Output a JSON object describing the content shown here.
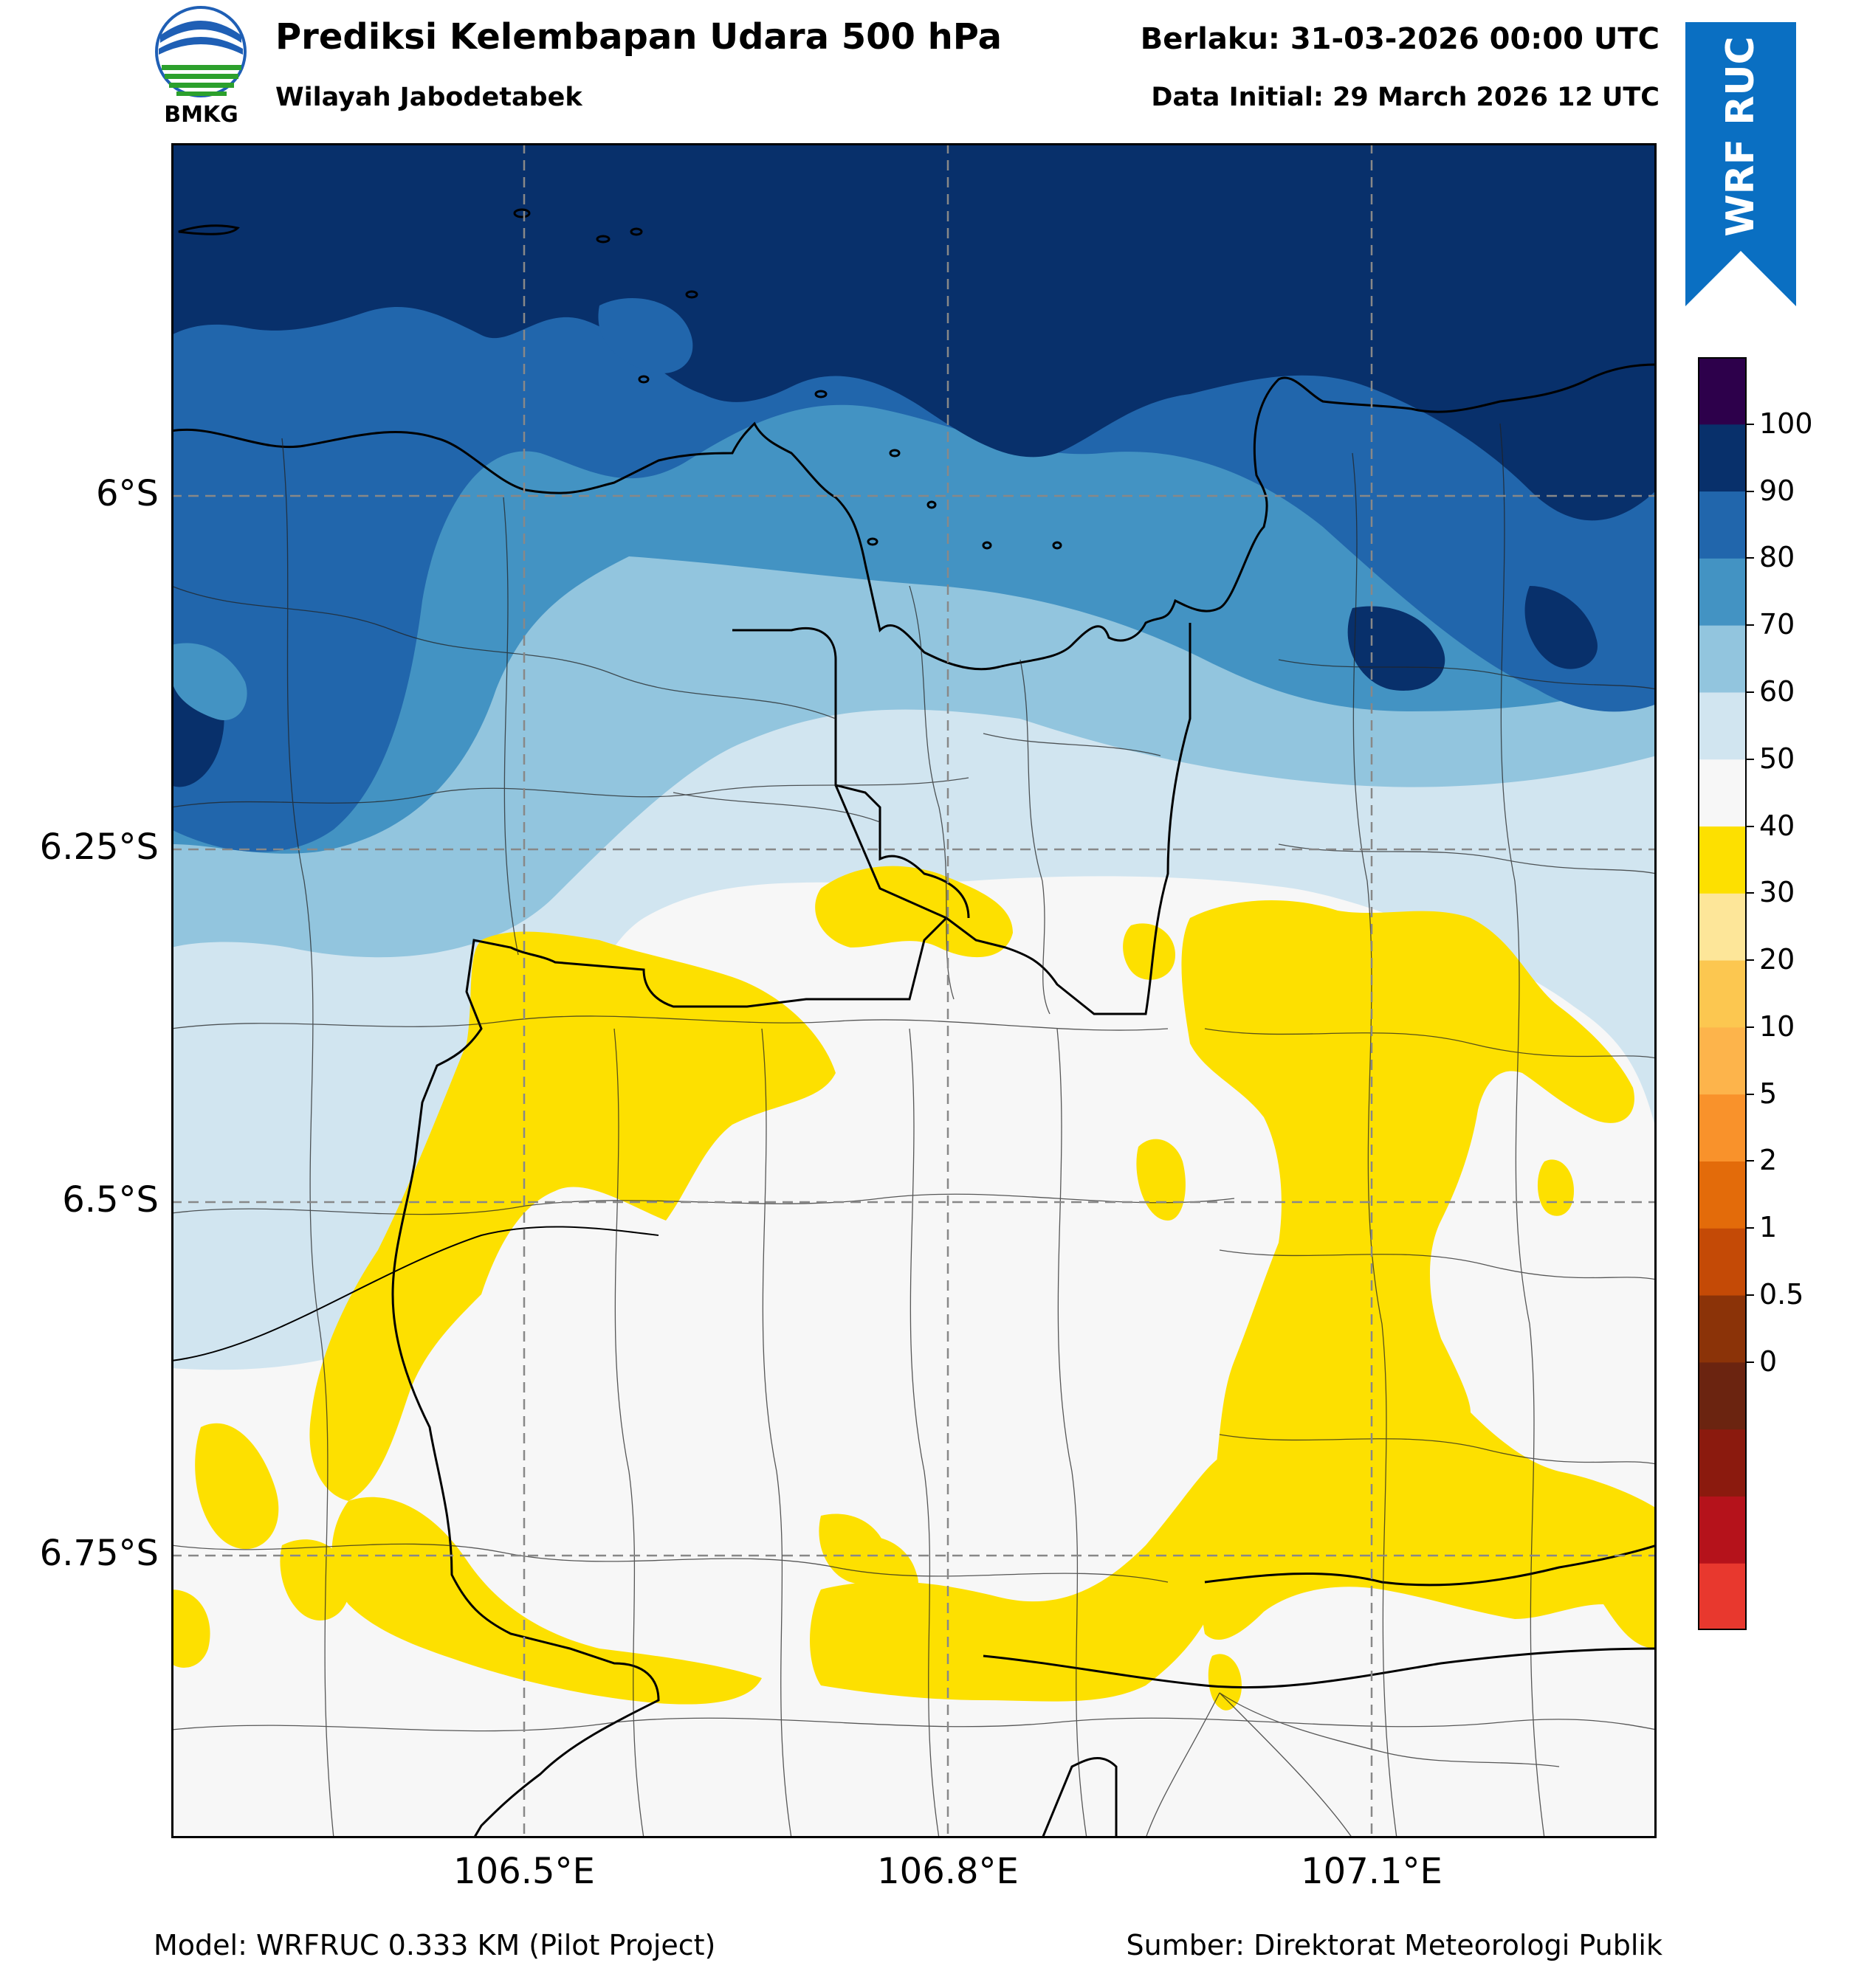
{
  "header": {
    "title": "Prediksi Kelembapan Udara 500 hPa",
    "subtitle": "Wilayah Jabodetabek",
    "valid": "Berlaku: 31-03-2026 00:00 UTC",
    "initial": "Data Initial: 29 March 2026 12 UTC"
  },
  "logo": {
    "text": "BMKG",
    "icon": "bmkg-logo"
  },
  "ribbon": {
    "text": "WRF RUC",
    "color": "#0a6fc2"
  },
  "map": {
    "lat_labels": [
      "6°S",
      "6.25°S",
      "6.5°S",
      "6.75°S"
    ],
    "lon_labels": [
      "106.5°E",
      "106.8°E",
      "107.1°E"
    ],
    "grid": true,
    "colors": {
      "band_90_100": "#08306b",
      "band_80_90": "#2166ac",
      "band_70_80": "#4393c3",
      "band_60_70": "#92c5de",
      "band_50_60": "#d1e5f0",
      "band_40_50": "#f7f7f7",
      "band_30_40": "#fde000"
    }
  },
  "colorbar": {
    "ticks": [
      "100",
      "90",
      "80",
      "70",
      "60",
      "50",
      "40",
      "30",
      "20",
      "10",
      "5",
      "2",
      "1",
      "0.5",
      "0"
    ],
    "colors": [
      "#e8382e",
      "#b5121b",
      "#8b1a0e",
      "#6b2410",
      "#8b3308",
      "#c44a06",
      "#e36b0a",
      "#f9922b",
      "#fdb44b",
      "#fcc750",
      "#fde699",
      "#fde000",
      "#f7f7f7",
      "#d1e5f0",
      "#92c5de",
      "#4393c3",
      "#2166ac",
      "#08306b",
      "#2d004b"
    ]
  },
  "footer": {
    "model": "Model: WRFRUC 0.333 KM (Pilot Project)",
    "source": "Sumber: Direktorat Meteorologi Publik"
  }
}
